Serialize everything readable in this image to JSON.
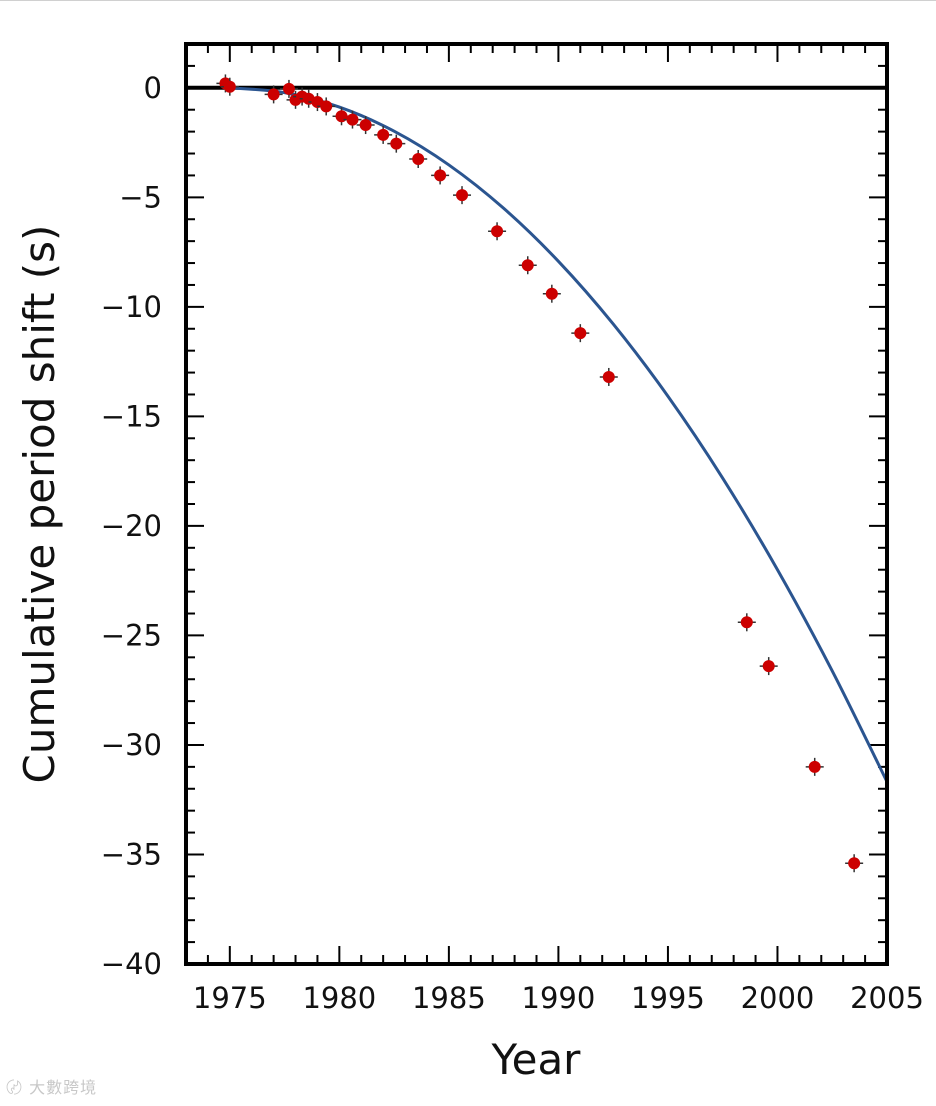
{
  "chart_data": {
    "type": "scatter",
    "title": "",
    "xlabel": "Year",
    "ylabel": "Cumulative period shift (s)",
    "xlim": [
      1973,
      2005
    ],
    "ylim": [
      -40,
      2
    ],
    "x_ticks": [
      1975,
      1980,
      1985,
      1990,
      1995,
      2000,
      2005
    ],
    "x_tick_labels": [
      "1975",
      "1980",
      "1985",
      "1990",
      "1995",
      "2000",
      "2005"
    ],
    "y_ticks": [
      0,
      -5,
      -10,
      -15,
      -20,
      -25,
      -30,
      -35,
      -40
    ],
    "y_tick_labels": [
      "0",
      "−5",
      "−10",
      "−15",
      "−20",
      "−25",
      "−30",
      "−35",
      "−40"
    ],
    "grid": false,
    "zero_line": true,
    "series": [
      {
        "type": "scatter",
        "color": "#cc0000",
        "x": [
          1974.8,
          1975.0,
          1977.0,
          1977.7,
          1978.0,
          1978.3,
          1978.6,
          1979.0,
          1979.4,
          1980.1,
          1980.6,
          1981.2,
          1982.0,
          1982.6,
          1983.6,
          1984.6,
          1985.6,
          1987.2,
          1988.6,
          1989.7,
          1991.0,
          1992.3,
          1998.6,
          1999.6,
          2001.7,
          2003.5
        ],
        "y": [
          0.2,
          0.05,
          -0.3,
          -0.05,
          -0.55,
          -0.4,
          -0.5,
          -0.65,
          -0.85,
          -1.3,
          -1.45,
          -1.7,
          -2.15,
          -2.55,
          -3.25,
          -4.0,
          -4.9,
          -6.55,
          -8.1,
          -9.4,
          -11.2,
          -13.2,
          -24.4,
          -26.4,
          -31.0,
          -35.4
        ]
      },
      {
        "type": "line",
        "color": "#2b5590",
        "x": [
          1975.0,
          1977.5,
          1980.0,
          1982.5,
          1985.0,
          1987.5,
          1990.0,
          1992.5,
          1995.0,
          1997.5,
          2000.0,
          2002.5,
          2005.0
        ],
        "y": [
          0.0,
          -0.22,
          -0.88,
          -1.98,
          -3.52,
          -5.5,
          -7.92,
          -10.78,
          -14.08,
          -17.82,
          -22.0,
          -26.62,
          -31.68
        ]
      }
    ]
  }
}
